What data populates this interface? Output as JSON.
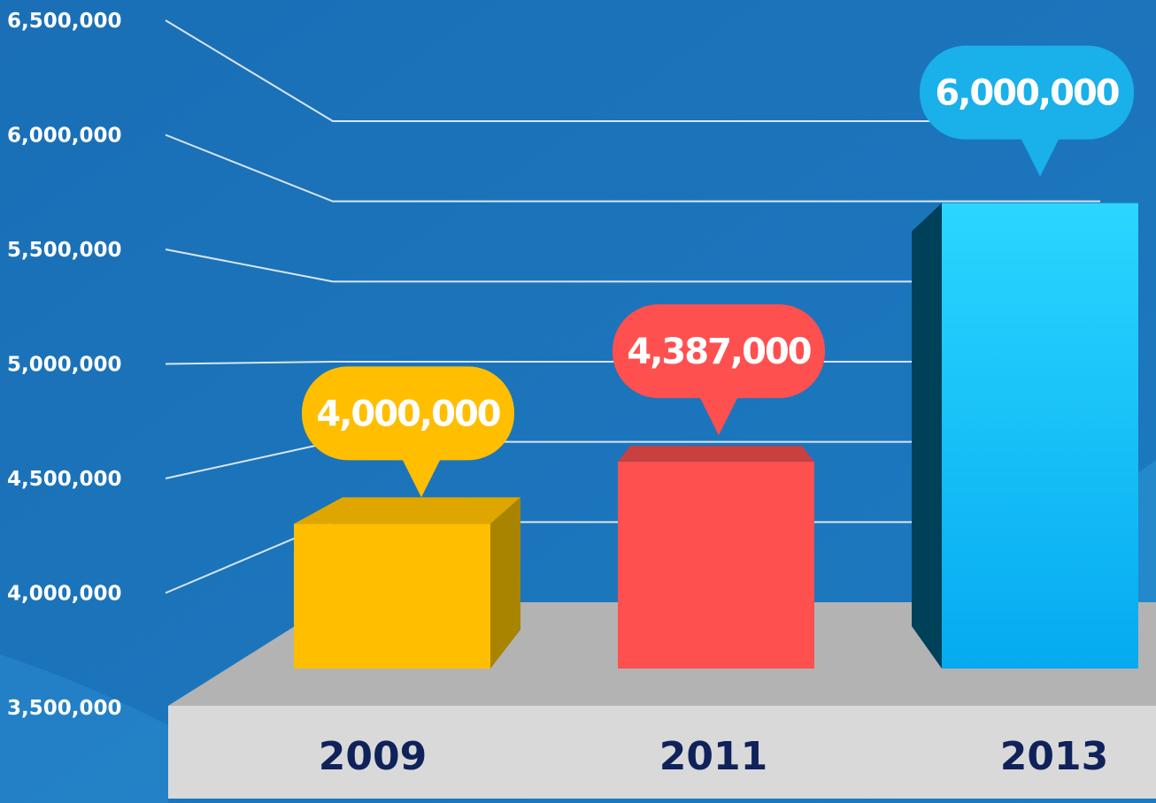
{
  "chart_data": {
    "type": "bar",
    "title": "",
    "xlabel": "",
    "ylabel": "",
    "categories": [
      "2009",
      "2011",
      "2013"
    ],
    "values": [
      4000000,
      4387000,
      6000000
    ],
    "data_labels": [
      "4,000,000",
      "4,387,000",
      "6,000,000"
    ],
    "yticks": [
      3500000,
      4000000,
      4500000,
      5000000,
      5500000,
      6000000,
      6500000
    ],
    "ytick_labels": [
      "3,500,000",
      "4,000,000",
      "4,500,000",
      "5,000,000",
      "5,500,000",
      "6,000,000",
      "6,500,000"
    ],
    "ylim": [
      3500000,
      6500000
    ],
    "grid": true,
    "legend": "none"
  },
  "colors": {
    "background": "#1b73b9",
    "grid": "#d8e6f2",
    "floor_top": "#b3b3b3",
    "floor_front": "#d9d9d9",
    "category_text": "#10225a",
    "bars": [
      {
        "front": "#ffbe00",
        "top": "#e0a600",
        "side": "#a88400",
        "label_bg": "#ffbe00"
      },
      {
        "front": "#ff5050",
        "top": "#c84040",
        "side": "#c84040",
        "label_bg": "#ff5050"
      },
      {
        "front": "#12b8f5",
        "top": "#33d4ff",
        "side": "#00415a",
        "label_bg": "#1ab0ea"
      }
    ]
  }
}
